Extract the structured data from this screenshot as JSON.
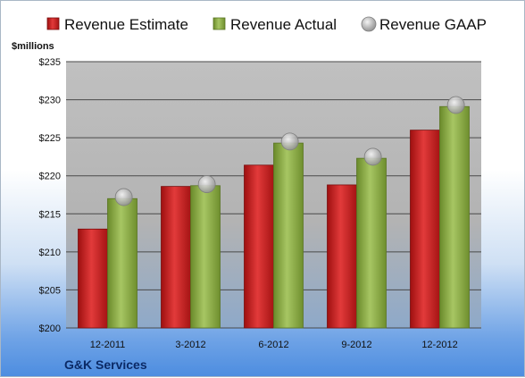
{
  "chart_data": {
    "type": "bar",
    "categories": [
      "12-2011",
      "3-2012",
      "6-2012",
      "9-2012",
      "12-2012"
    ],
    "series": [
      {
        "name": "Revenue Estimate",
        "values": [
          213.0,
          218.6,
          221.4,
          218.8,
          226.0
        ],
        "color": "#d42b2b"
      },
      {
        "name": "Revenue Actual",
        "values": [
          217.0,
          218.7,
          224.3,
          222.3,
          229.1
        ],
        "color": "#8fb04a"
      },
      {
        "name": "Revenue GAAP",
        "values": [
          217.2,
          218.9,
          224.5,
          222.5,
          229.3
        ],
        "color": "#b8b8b8",
        "marker": "circle"
      }
    ],
    "ylim": [
      200,
      235
    ],
    "yticks": [
      "$200",
      "$205",
      "$210",
      "$215",
      "$220",
      "$225",
      "$230",
      "$235"
    ],
    "ylabel": "$millions",
    "legend_position": "top",
    "grid": true
  },
  "company_label": "G&K Services"
}
